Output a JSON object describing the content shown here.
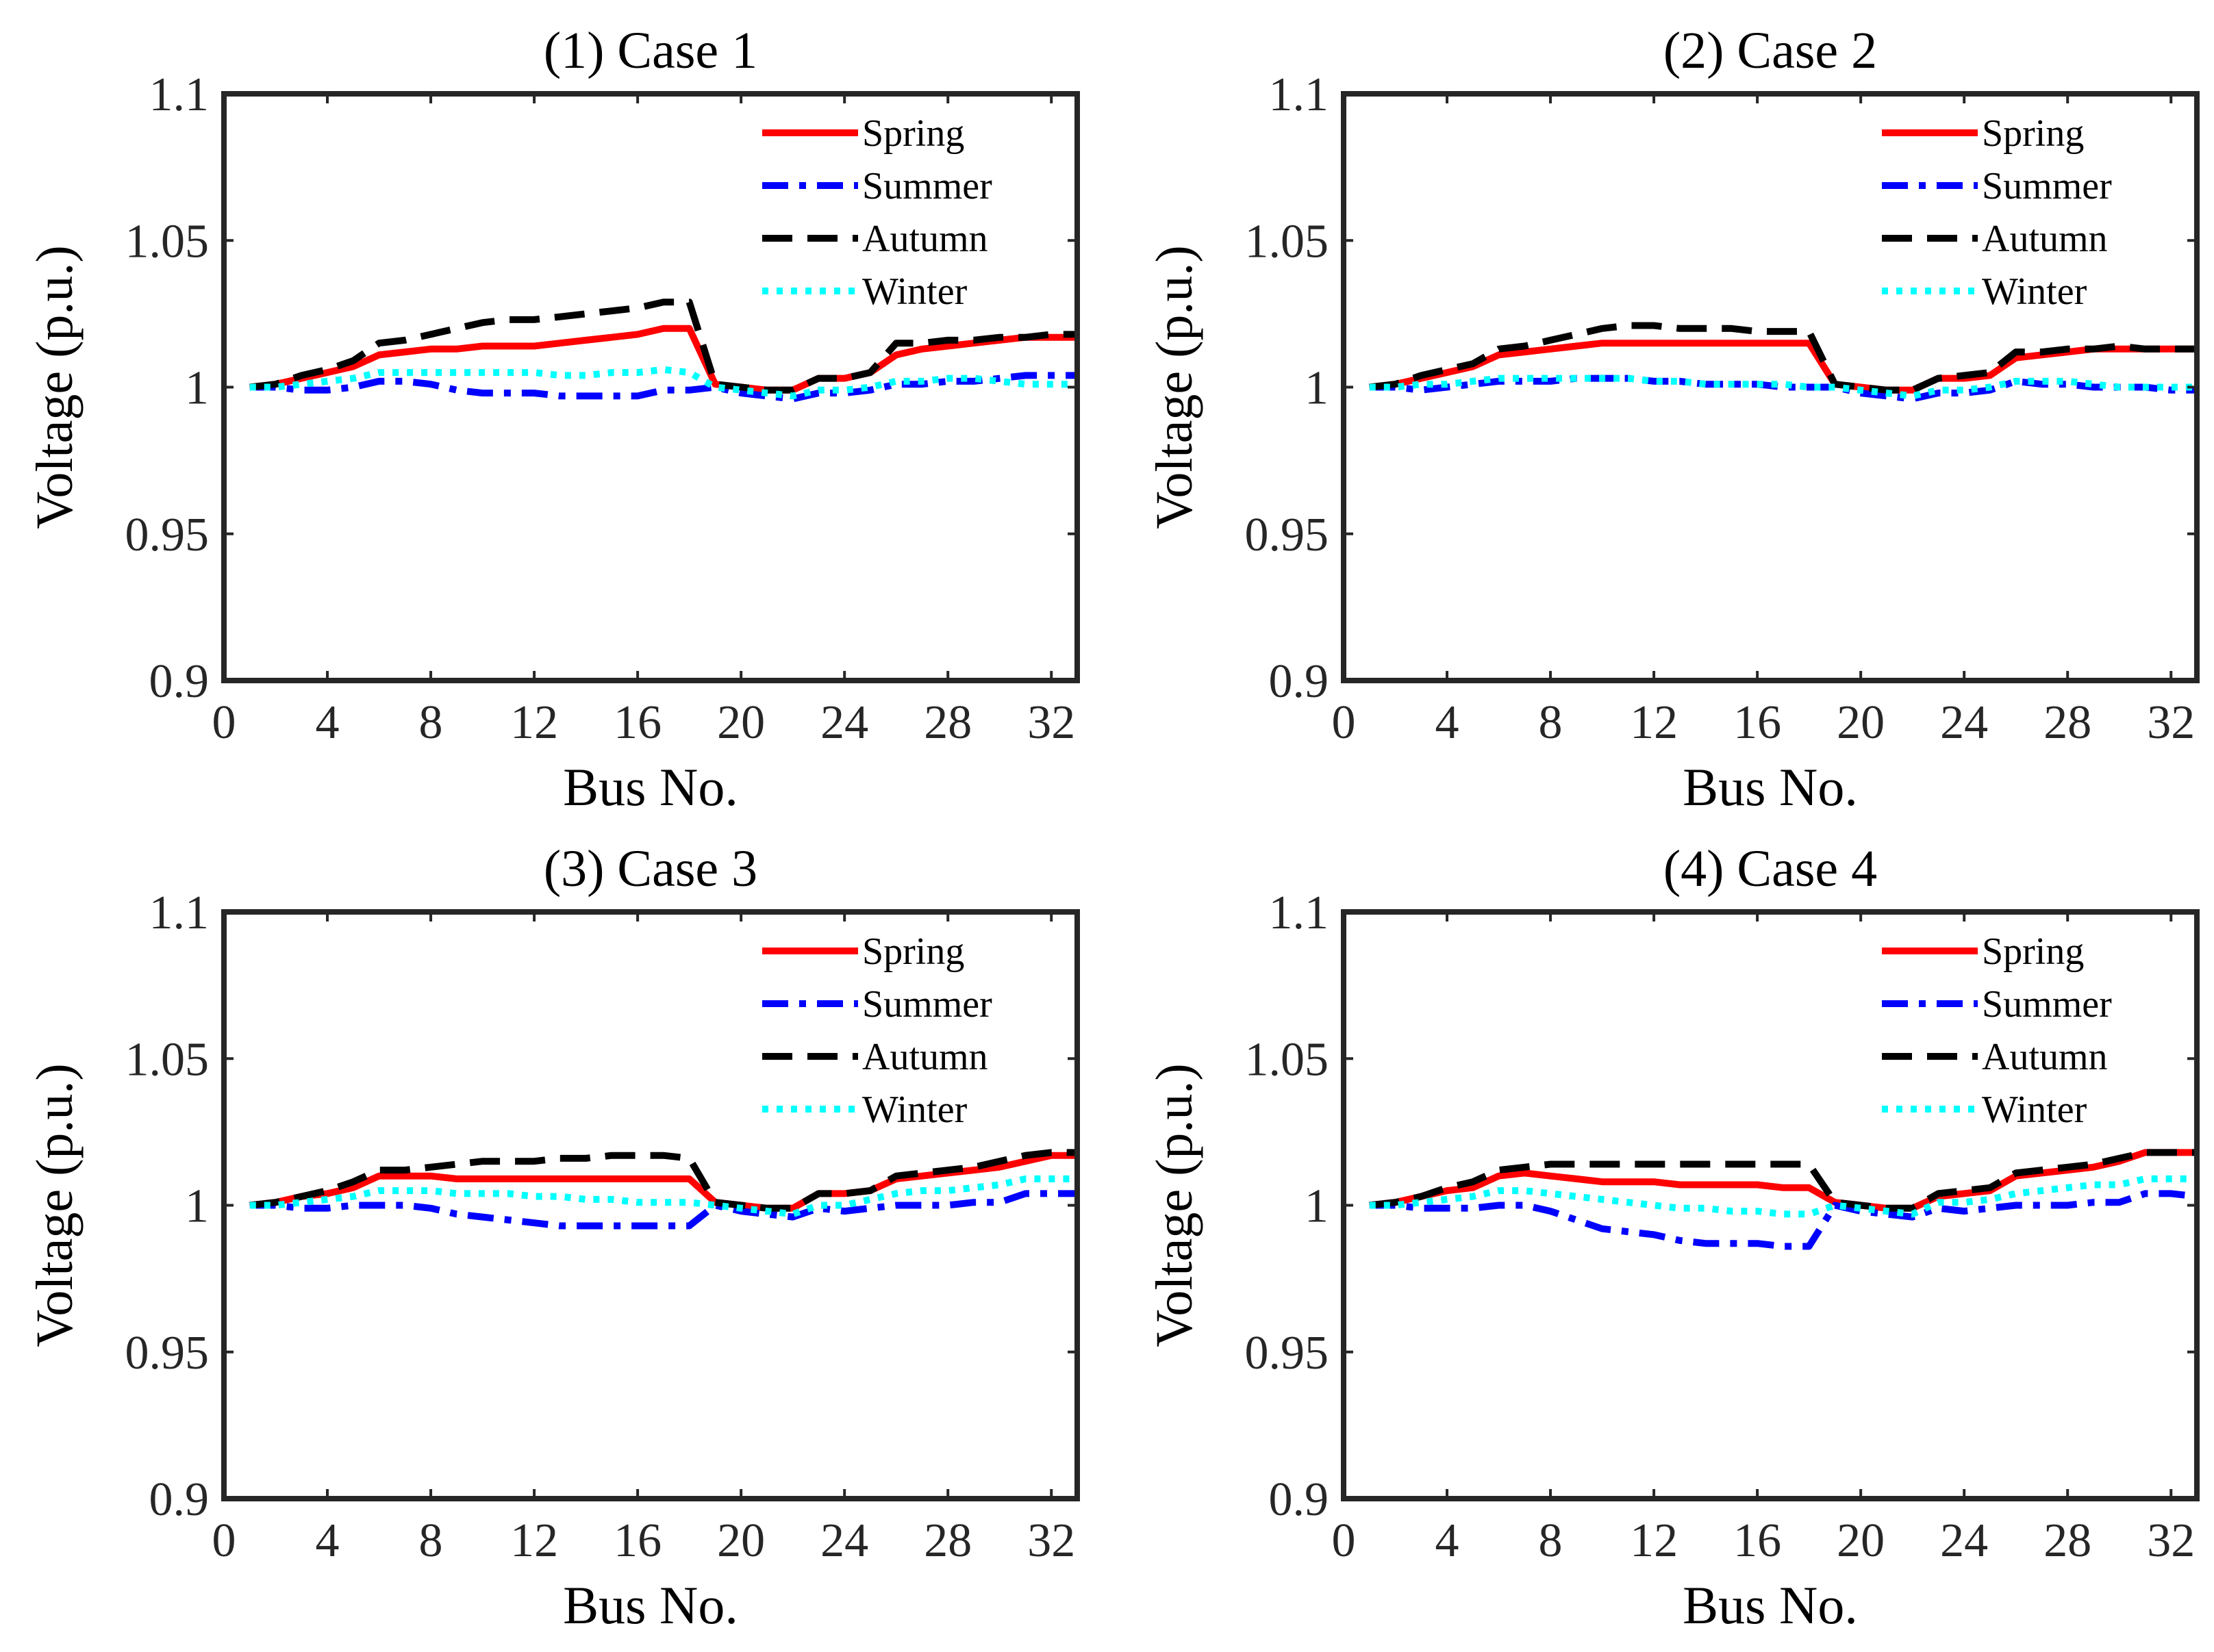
{
  "figure": {
    "series_styles": [
      {
        "name": "Spring",
        "color": "#ff0000",
        "dash": "solid"
      },
      {
        "name": "Summer",
        "color": "#0000ff",
        "dash": "dashdot"
      },
      {
        "name": "Autumn",
        "color": "#000000",
        "dash": "dashed"
      },
      {
        "name": "Winter",
        "color": "#00ffff",
        "dash": "dotted"
      }
    ]
  },
  "chart_data": [
    {
      "type": "line",
      "title": "(1) Case 1",
      "xlabel": "Bus No.",
      "ylabel": "Voltage (p.u.)",
      "xlim": [
        0,
        33
      ],
      "ylim": [
        0.9,
        1.1
      ],
      "xticks": [
        "0",
        "4",
        "8",
        "12",
        "16",
        "20",
        "24",
        "28",
        "32"
      ],
      "yticks": [
        "0.9",
        "0.95",
        "1",
        "1.05",
        "1.1"
      ],
      "legend_position": "top-right",
      "grid": false,
      "x": [
        1,
        2,
        3,
        4,
        5,
        6,
        7,
        8,
        9,
        10,
        11,
        12,
        13,
        14,
        15,
        16,
        17,
        18,
        19,
        20,
        21,
        22,
        23,
        24,
        25,
        26,
        27,
        28,
        29,
        30,
        31,
        32,
        33
      ],
      "series": [
        {
          "name": "Spring",
          "values": [
            1.0,
            1.001,
            1.003,
            1.005,
            1.007,
            1.011,
            1.012,
            1.013,
            1.013,
            1.014,
            1.014,
            1.014,
            1.015,
            1.016,
            1.017,
            1.018,
            1.02,
            1.02,
            1.001,
            1.0,
            0.999,
            0.999,
            1.003,
            1.003,
            1.005,
            1.011,
            1.013,
            1.014,
            1.015,
            1.016,
            1.017,
            1.017,
            1.017
          ]
        },
        {
          "name": "Summer",
          "values": [
            1.0,
            1.0,
            0.999,
            0.999,
            1.0,
            1.002,
            1.002,
            1.001,
            0.999,
            0.998,
            0.998,
            0.998,
            0.997,
            0.997,
            0.997,
            0.997,
            0.999,
            0.999,
            1.0,
            0.998,
            0.997,
            0.996,
            0.998,
            0.998,
            0.999,
            1.001,
            1.001,
            1.002,
            1.002,
            1.003,
            1.004,
            1.004,
            1.004
          ]
        },
        {
          "name": "Autumn",
          "values": [
            1.0,
            1.001,
            1.004,
            1.006,
            1.009,
            1.015,
            1.016,
            1.018,
            1.02,
            1.022,
            1.023,
            1.023,
            1.024,
            1.025,
            1.026,
            1.027,
            1.029,
            1.029,
            1.001,
            1.0,
            0.999,
            0.999,
            1.003,
            1.003,
            1.005,
            1.015,
            1.015,
            1.016,
            1.016,
            1.017,
            1.017,
            1.018,
            1.018
          ]
        },
        {
          "name": "Winter",
          "values": [
            1.0,
            1.0,
            1.001,
            1.002,
            1.003,
            1.005,
            1.005,
            1.005,
            1.005,
            1.005,
            1.005,
            1.005,
            1.004,
            1.004,
            1.005,
            1.005,
            1.006,
            1.005,
            1.0,
            0.999,
            0.998,
            0.997,
            0.999,
            0.999,
            1.0,
            1.002,
            1.002,
            1.003,
            1.003,
            1.002,
            1.001,
            1.001,
            1.001
          ]
        }
      ]
    },
    {
      "type": "line",
      "title": "(2) Case 2",
      "xlabel": "Bus No.",
      "ylabel": "Voltage (p.u.)",
      "xlim": [
        0,
        33
      ],
      "ylim": [
        0.9,
        1.1
      ],
      "xticks": [
        "0",
        "4",
        "8",
        "12",
        "16",
        "20",
        "24",
        "28",
        "32"
      ],
      "yticks": [
        "0.9",
        "0.95",
        "1",
        "1.05",
        "1.1"
      ],
      "legend_position": "top-right",
      "grid": false,
      "x": [
        1,
        2,
        3,
        4,
        5,
        6,
        7,
        8,
        9,
        10,
        11,
        12,
        13,
        14,
        15,
        16,
        17,
        18,
        19,
        20,
        21,
        22,
        23,
        24,
        25,
        26,
        27,
        28,
        29,
        30,
        31,
        32,
        33
      ],
      "series": [
        {
          "name": "Spring",
          "values": [
            1.0,
            1.001,
            1.003,
            1.005,
            1.007,
            1.011,
            1.012,
            1.013,
            1.014,
            1.015,
            1.015,
            1.015,
            1.015,
            1.015,
            1.015,
            1.015,
            1.015,
            1.015,
            1.001,
            1.0,
            0.999,
            0.999,
            1.003,
            1.003,
            1.004,
            1.01,
            1.011,
            1.012,
            1.013,
            1.013,
            1.013,
            1.013,
            1.013
          ]
        },
        {
          "name": "Summer",
          "values": [
            1.0,
            1.0,
            0.999,
            1.0,
            1.001,
            1.002,
            1.002,
            1.002,
            1.003,
            1.003,
            1.003,
            1.002,
            1.002,
            1.001,
            1.001,
            1.001,
            1.0,
            1.0,
            1.0,
            0.998,
            0.997,
            0.996,
            0.998,
            0.998,
            0.999,
            1.002,
            1.001,
            1.001,
            1.0,
            1.0,
            1.0,
            0.999,
            0.999
          ]
        },
        {
          "name": "Autumn",
          "values": [
            1.0,
            1.001,
            1.004,
            1.006,
            1.008,
            1.013,
            1.014,
            1.016,
            1.018,
            1.02,
            1.021,
            1.021,
            1.02,
            1.02,
            1.02,
            1.019,
            1.019,
            1.019,
            1.001,
            1.0,
            0.999,
            0.999,
            1.003,
            1.004,
            1.005,
            1.012,
            1.012,
            1.013,
            1.013,
            1.014,
            1.013,
            1.013,
            1.013
          ]
        },
        {
          "name": "Winter",
          "values": [
            1.0,
            1.0,
            1.001,
            1.001,
            1.002,
            1.003,
            1.003,
            1.003,
            1.003,
            1.003,
            1.003,
            1.002,
            1.002,
            1.001,
            1.001,
            1.001,
            1.001,
            1.0,
            1.0,
            0.999,
            0.998,
            0.997,
            0.999,
            0.999,
            1.0,
            1.002,
            1.002,
            1.002,
            1.001,
            1.0,
            1.0,
            1.0,
            1.0
          ]
        }
      ]
    },
    {
      "type": "line",
      "title": "(3) Case 3",
      "xlabel": "Bus No.",
      "ylabel": "Voltage (p.u.)",
      "xlim": [
        0,
        33
      ],
      "ylim": [
        0.9,
        1.1
      ],
      "xticks": [
        "0",
        "4",
        "8",
        "12",
        "16",
        "20",
        "24",
        "28",
        "32"
      ],
      "yticks": [
        "0.9",
        "0.95",
        "1",
        "1.05",
        "1.1"
      ],
      "legend_position": "top-right",
      "grid": false,
      "x": [
        1,
        2,
        3,
        4,
        5,
        6,
        7,
        8,
        9,
        10,
        11,
        12,
        13,
        14,
        15,
        16,
        17,
        18,
        19,
        20,
        21,
        22,
        23,
        24,
        25,
        26,
        27,
        28,
        29,
        30,
        31,
        32,
        33
      ],
      "series": [
        {
          "name": "Spring",
          "values": [
            1.0,
            1.001,
            1.003,
            1.004,
            1.006,
            1.01,
            1.01,
            1.01,
            1.009,
            1.009,
            1.009,
            1.009,
            1.009,
            1.009,
            1.009,
            1.009,
            1.009,
            1.009,
            1.001,
            1.0,
            0.999,
            0.999,
            1.004,
            1.004,
            1.005,
            1.009,
            1.01,
            1.011,
            1.012,
            1.013,
            1.015,
            1.017,
            1.017
          ]
        },
        {
          "name": "Summer",
          "values": [
            1.0,
            1.0,
            0.999,
            0.999,
            1.0,
            1.0,
            1.0,
            0.999,
            0.997,
            0.996,
            0.995,
            0.994,
            0.993,
            0.993,
            0.993,
            0.993,
            0.993,
            0.993,
            1.0,
            0.998,
            0.997,
            0.996,
            0.999,
            0.998,
            0.999,
            1.0,
            1.0,
            1.0,
            1.001,
            1.001,
            1.004,
            1.004,
            1.004
          ]
        },
        {
          "name": "Autumn",
          "values": [
            1.0,
            1.001,
            1.003,
            1.005,
            1.008,
            1.012,
            1.012,
            1.013,
            1.014,
            1.015,
            1.015,
            1.015,
            1.016,
            1.016,
            1.017,
            1.017,
            1.017,
            1.016,
            1.001,
            1.0,
            0.999,
            0.999,
            1.004,
            1.004,
            1.005,
            1.01,
            1.011,
            1.012,
            1.013,
            1.015,
            1.017,
            1.018,
            1.018
          ]
        },
        {
          "name": "Winter",
          "values": [
            1.0,
            1.0,
            1.001,
            1.002,
            1.003,
            1.005,
            1.005,
            1.005,
            1.004,
            1.004,
            1.004,
            1.003,
            1.003,
            1.002,
            1.002,
            1.001,
            1.001,
            1.001,
            1.0,
            0.999,
            0.998,
            0.997,
            1.0,
            1.0,
            1.002,
            1.004,
            1.005,
            1.005,
            1.006,
            1.007,
            1.009,
            1.009,
            1.009
          ]
        }
      ]
    },
    {
      "type": "line",
      "title": "(4) Case 4",
      "xlabel": "Bus No.",
      "ylabel": "Voltage (p.u.)",
      "xlim": [
        0,
        33
      ],
      "ylim": [
        0.9,
        1.1
      ],
      "xticks": [
        "0",
        "4",
        "8",
        "12",
        "16",
        "20",
        "24",
        "28",
        "32"
      ],
      "yticks": [
        "0.9",
        "0.95",
        "1",
        "1.05",
        "1.1"
      ],
      "legend_position": "top-right",
      "grid": false,
      "x": [
        1,
        2,
        3,
        4,
        5,
        6,
        7,
        8,
        9,
        10,
        11,
        12,
        13,
        14,
        15,
        16,
        17,
        18,
        19,
        20,
        21,
        22,
        23,
        24,
        25,
        26,
        27,
        28,
        29,
        30,
        31,
        32,
        33
      ],
      "series": [
        {
          "name": "Spring",
          "values": [
            1.0,
            1.001,
            1.003,
            1.005,
            1.006,
            1.01,
            1.011,
            1.01,
            1.009,
            1.008,
            1.008,
            1.008,
            1.007,
            1.007,
            1.007,
            1.007,
            1.006,
            1.006,
            1.001,
            1.0,
            0.999,
            0.999,
            1.003,
            1.004,
            1.005,
            1.01,
            1.011,
            1.012,
            1.013,
            1.015,
            1.018,
            1.018,
            1.018
          ]
        },
        {
          "name": "Summer",
          "values": [
            1.0,
            1.0,
            0.999,
            0.999,
            0.999,
            1.0,
            1.0,
            0.998,
            0.995,
            0.992,
            0.991,
            0.99,
            0.988,
            0.987,
            0.987,
            0.987,
            0.986,
            0.986,
            1.0,
            0.998,
            0.997,
            0.996,
            0.999,
            0.998,
            0.999,
            1.0,
            1.0,
            1.0,
            1.001,
            1.001,
            1.004,
            1.004,
            1.003
          ]
        },
        {
          "name": "Autumn",
          "values": [
            1.0,
            1.001,
            1.003,
            1.006,
            1.008,
            1.012,
            1.013,
            1.014,
            1.014,
            1.014,
            1.014,
            1.014,
            1.014,
            1.014,
            1.014,
            1.014,
            1.014,
            1.014,
            1.001,
            1.0,
            0.999,
            0.999,
            1.004,
            1.005,
            1.006,
            1.011,
            1.012,
            1.013,
            1.014,
            1.016,
            1.018,
            1.018,
            1.018
          ]
        },
        {
          "name": "Winter",
          "values": [
            1.0,
            1.0,
            1.001,
            1.002,
            1.003,
            1.005,
            1.005,
            1.004,
            1.003,
            1.002,
            1.001,
            1.0,
            0.999,
            0.999,
            0.998,
            0.998,
            0.997,
            0.997,
            1.0,
            0.999,
            0.998,
            0.997,
            1.001,
            1.001,
            1.002,
            1.004,
            1.005,
            1.006,
            1.007,
            1.007,
            1.009,
            1.009,
            1.009
          ]
        }
      ]
    }
  ]
}
